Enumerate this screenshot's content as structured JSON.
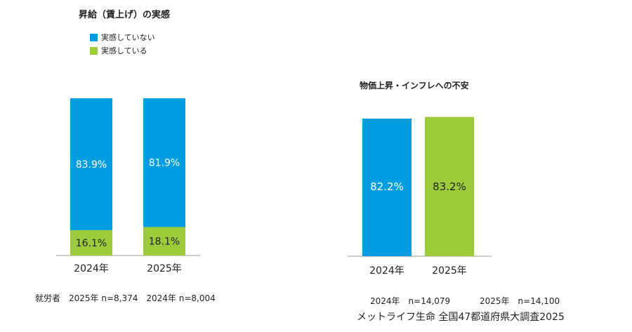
{
  "colors": {
    "not_feel": "#009de0",
    "feel": "#9ccb3b",
    "white_text": "#ffffff",
    "dark_text": "#222222"
  },
  "legend": {
    "not_feel": "実感していない",
    "feel": "実感している"
  },
  "chart_data": [
    {
      "type": "bar",
      "stacked": true,
      "title": "昇給（賃上げ）の実感",
      "categories": [
        "2024年",
        "2025年"
      ],
      "series": [
        {
          "name": "実感している",
          "values": [
            16.1,
            18.1
          ],
          "labels": [
            "16.1%",
            "18.1%"
          ],
          "color": "#9ccb3b"
        },
        {
          "name": "実感していない",
          "values": [
            83.9,
            81.9
          ],
          "labels": [
            "83.9%",
            "81.9%"
          ],
          "color": "#009de0"
        }
      ],
      "ylim": [
        0,
        100
      ],
      "legend_position": "top-left",
      "grid": false,
      "note": "就労者　2025年 n=8,374　2024年 n=8,004"
    },
    {
      "type": "bar",
      "title": "物価上昇・インフレへの不安",
      "categories": [
        "2024年",
        "2025年"
      ],
      "values": [
        82.2,
        83.2
      ],
      "labels": [
        "82.2%",
        "83.2%"
      ],
      "colors": [
        "#009de0",
        "#9ccb3b"
      ],
      "ylim": [
        0,
        100
      ],
      "grid": false,
      "note_2024": "2024年　n=14,079",
      "note_2025": "2025年　n=14,100"
    }
  ],
  "source": "メットライフ生命 全国47都道府県大調査2025"
}
